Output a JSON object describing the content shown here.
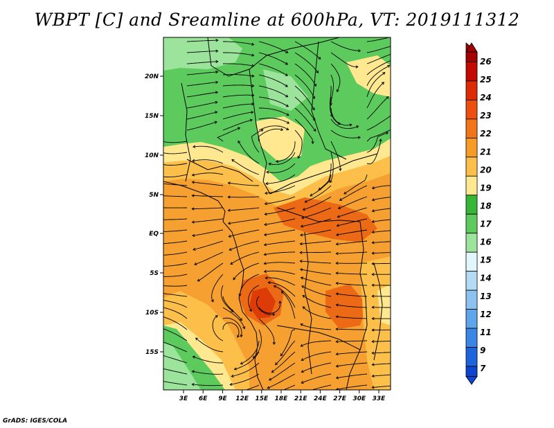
{
  "title": "WBPT [C] and Sreamline at 600hPa, VT: 2019111312",
  "credit": "GrADS: IGES/COLA",
  "map": {
    "lat_ticks": [
      "20N",
      "15N",
      "10N",
      "5N",
      "EQ",
      "5S",
      "10S",
      "15S"
    ],
    "lon_ticks": [
      "3E",
      "6E",
      "9E",
      "12E",
      "15E",
      "18E",
      "21E",
      "24E",
      "27E",
      "30E",
      "33E"
    ]
  },
  "colorbar": {
    "labels": [
      "26",
      "25",
      "24",
      "23",
      "22",
      "21",
      "20",
      "19",
      "18",
      "17",
      "16",
      "15",
      "14",
      "13",
      "12",
      "11",
      "9",
      "7"
    ],
    "colors": [
      "#a50000",
      "#c40a00",
      "#dd2b05",
      "#ec4f10",
      "#f2751a",
      "#f59b26",
      "#fbbf4a",
      "#ffe890",
      "#36b536",
      "#5dca5d",
      "#9ce39c",
      "#e1f7fb",
      "#b4dbf5",
      "#8cc2f0",
      "#5fa5eb",
      "#3a86e6",
      "#1d63dc",
      "#0d44d0"
    ]
  }
}
